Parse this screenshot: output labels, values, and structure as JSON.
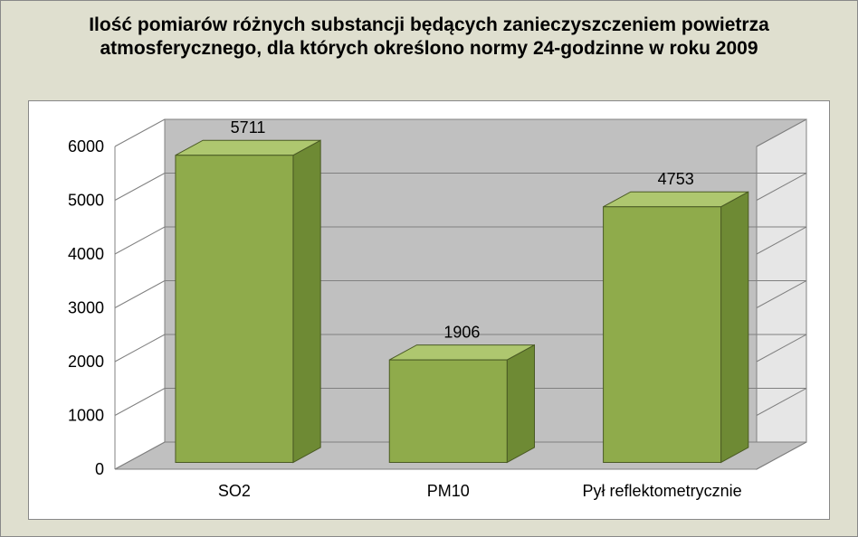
{
  "chart": {
    "type": "bar-3d",
    "title": "Ilość pomiarów różnych substancji będących zanieczyszczeniem powietrza atmosferycznego, dla których określono normy 24-godzinne w roku 2009",
    "title_fontsize": 21,
    "title_color": "#000000",
    "outer_background": "#dfdfcf",
    "plot_background": "#ffffff",
    "floor_color": "#c0c0c0",
    "backwall_color": "#c0c0c0",
    "sidewall_color": "#e6e6e6",
    "grid_color": "#808080",
    "axis_line_color": "#808080",
    "tick_label_fontsize": 18,
    "category_label_fontsize": 18,
    "value_label_fontsize": 18,
    "categories": [
      "SO2",
      "PM10",
      "Pył reflektometrycznie"
    ],
    "values": [
      5711,
      1906,
      4753
    ],
    "bar_front_color": "#8fab4b",
    "bar_top_color": "#aec76f",
    "bar_side_color": "#6e8a34",
    "bar_outline": "#4a5a24",
    "ylim": [
      0,
      6000
    ],
    "ytick_step": 1000,
    "bar_width_ratio": 0.55,
    "depth_dx": 55,
    "depth_dy": 30
  }
}
